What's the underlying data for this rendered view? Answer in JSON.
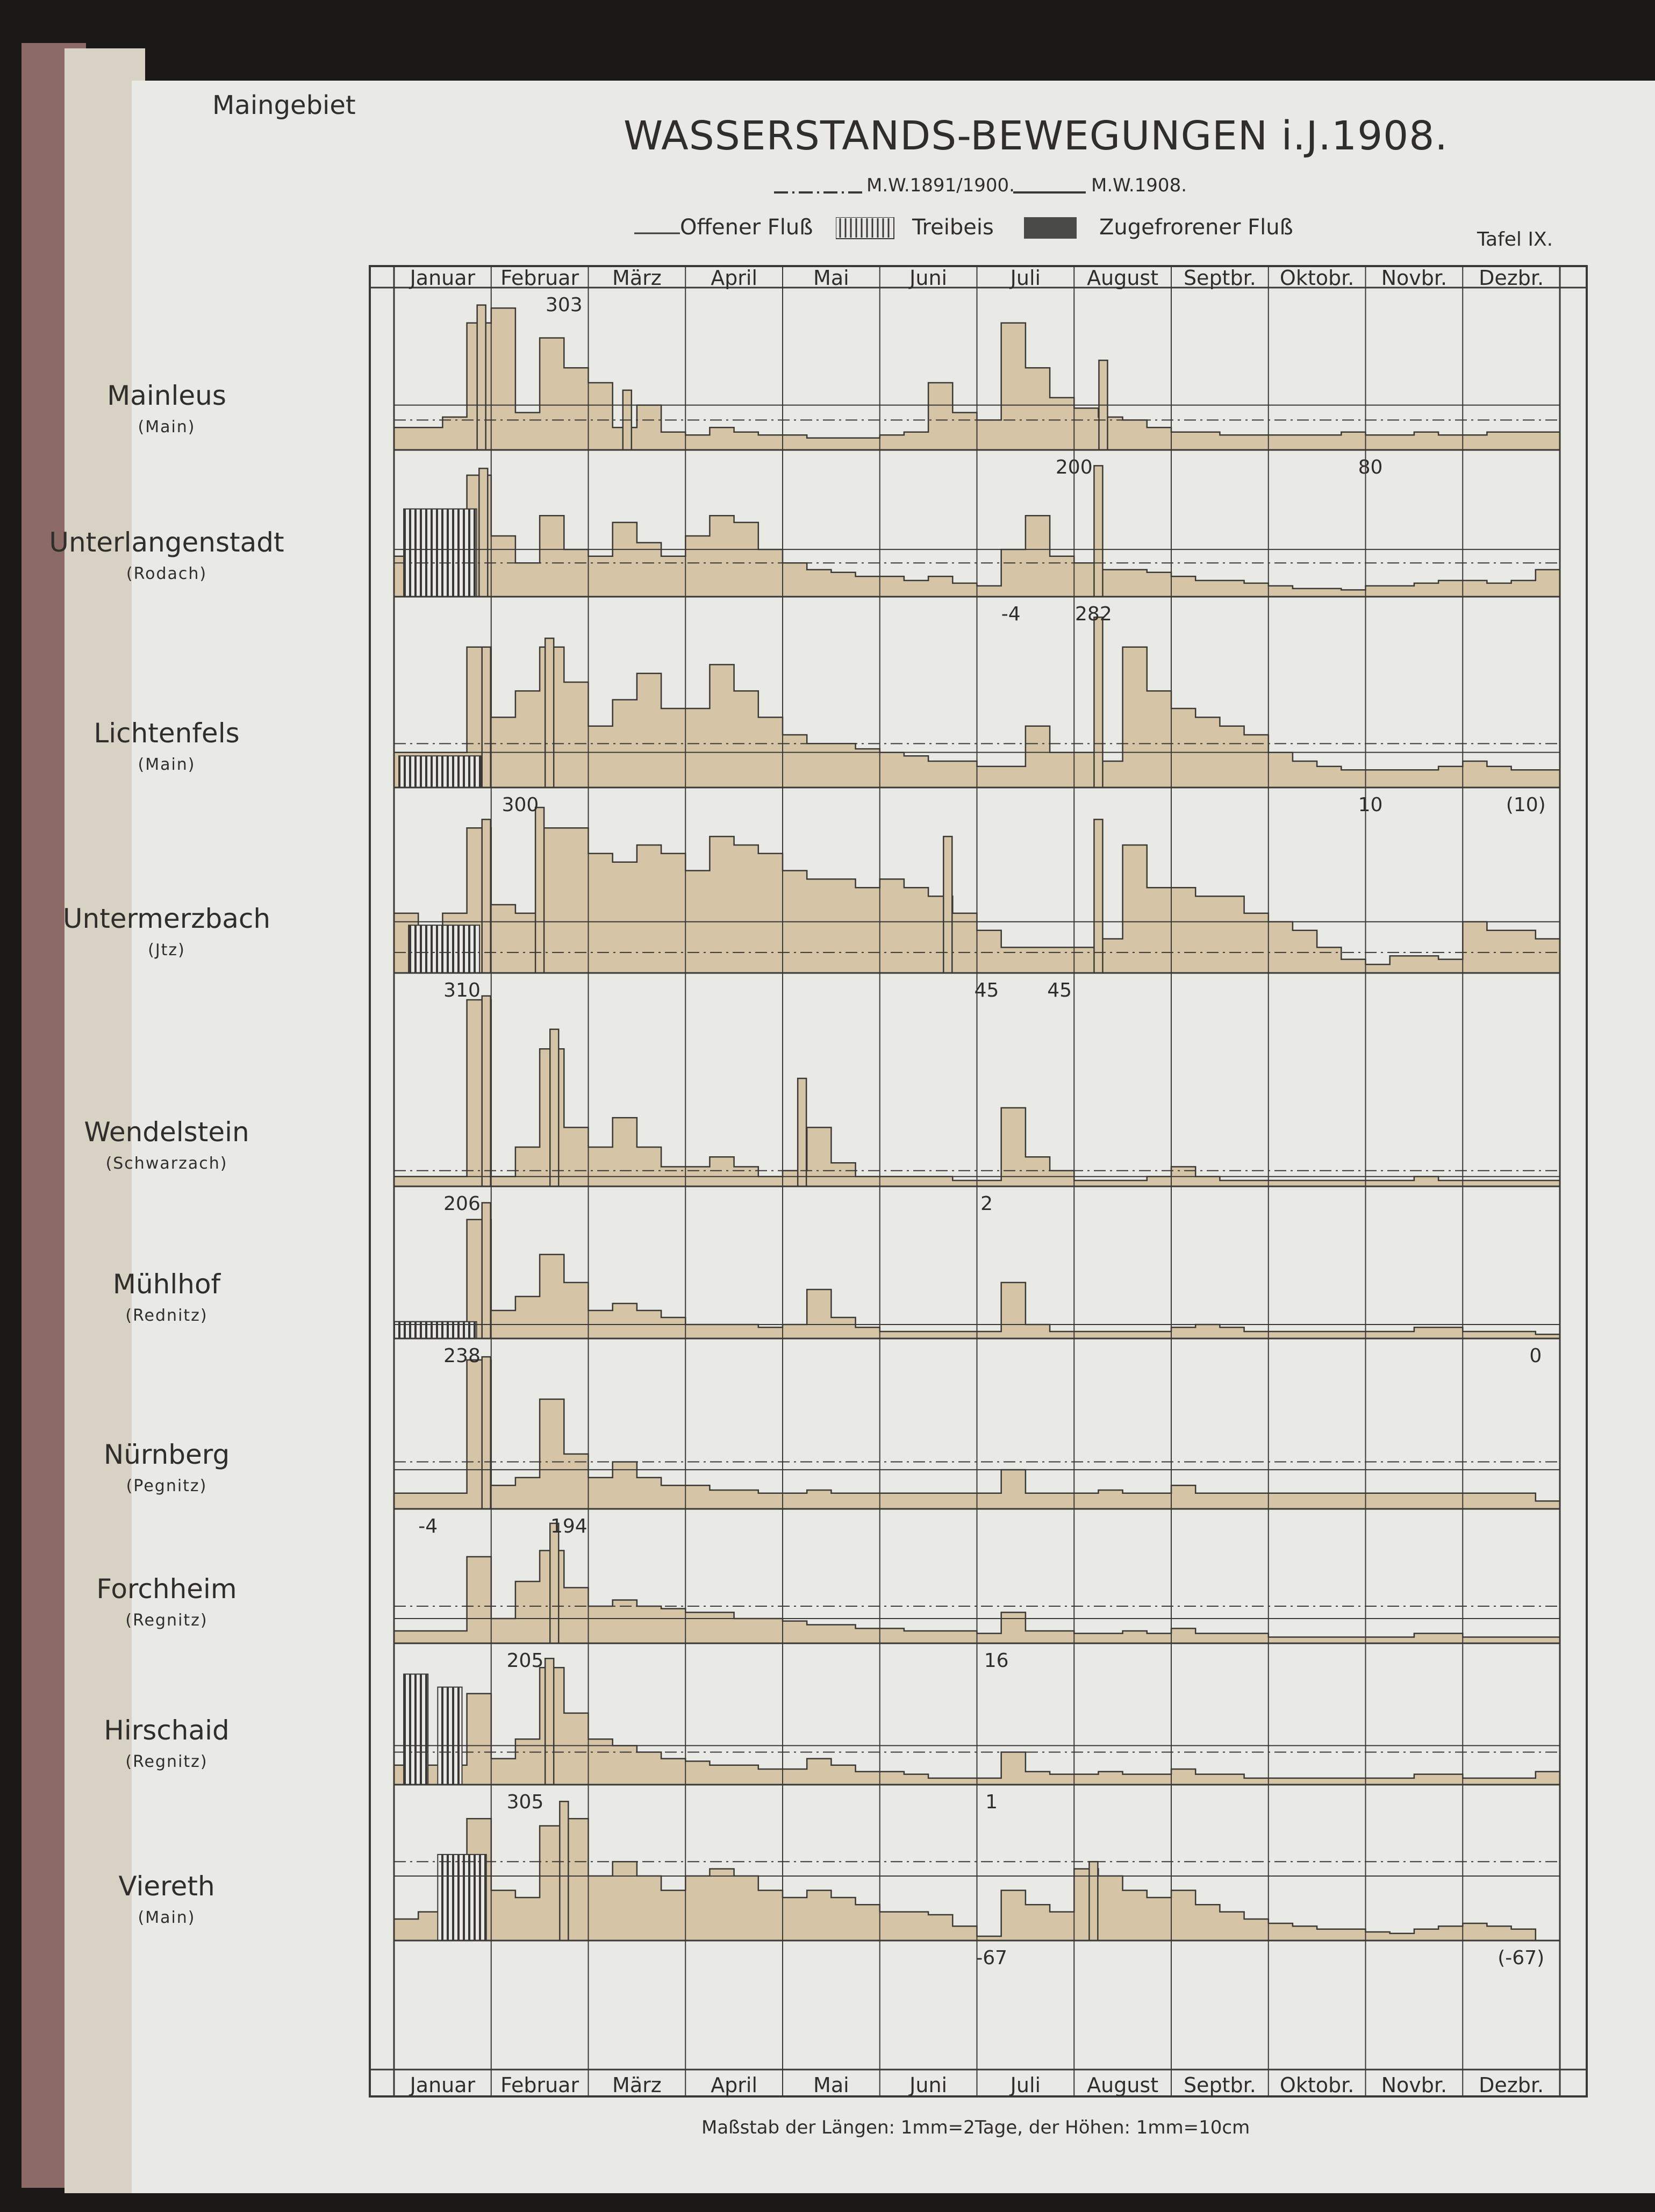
{
  "header": {
    "region": "Maingebiet",
    "title": "WASSERSTANDS-BEWEGUNGEN i.J.1908.",
    "plate": "Tafel IX.",
    "mw_legend": [
      {
        "name": "M.W.1891/1900.",
        "style": "dash-dot"
      },
      {
        "name": "M.W.1908.",
        "style": "solid"
      }
    ],
    "ice_legend": [
      {
        "name": "Offener Fluß",
        "style": "line"
      },
      {
        "name": "Treibeis",
        "style": "hatched"
      },
      {
        "name": "Zugefrorener Fluß",
        "style": "dark"
      }
    ]
  },
  "footer": {
    "scale": "Maßstab der Längen: 1mm=2Tage, der Höhen: 1mm=10cm"
  },
  "colors": {
    "paper": "#e9e9e5",
    "fill": "#d6c4a7",
    "ink": "#3a3936",
    "ice": "#4a4a46"
  },
  "chart_data": {
    "type": "area",
    "months_top": [
      "Januar",
      "Februar",
      "März",
      "April",
      "Mai",
      "Juni",
      "Juli",
      "August",
      "Septbr.",
      "Oktobr.",
      "Novbr.",
      "Dezbr."
    ],
    "months_bottom": [
      "Januar",
      "Februar",
      "März",
      "April",
      "Mai",
      "Juni",
      "Juli",
      "August",
      "Septbr.",
      "Oktobr.",
      "Novbr.",
      "Dezbr."
    ],
    "stations": [
      {
        "name": "Mainleus",
        "river": "(Main)",
        "ice": [],
        "profile": [
          0.15,
          0.15,
          0.22,
          0.85,
          0.95,
          0.25,
          0.75,
          0.55,
          0.45,
          0.15,
          0.3,
          0.12,
          0.1,
          0.15,
          0.12,
          0.1,
          0.1,
          0.08,
          0.08,
          0.08,
          0.1,
          0.12,
          0.45,
          0.25,
          0.2,
          0.85,
          0.55,
          0.35,
          0.28,
          0.22,
          0.2,
          0.15,
          0.12,
          0.12,
          0.1,
          0.1,
          0.1,
          0.1,
          0.1,
          0.12,
          0.1,
          0.1,
          0.12,
          0.1,
          0.1,
          0.12,
          0.12,
          0.12
        ],
        "spikes": [
          {
            "month": 0.9,
            "value": 303
          },
          {
            "month": 2.4,
            "value": 0.4
          },
          {
            "month": 7.3,
            "value": 0.6
          }
        ],
        "mw_old": 0.2,
        "mw_new": 0.3,
        "labels": [
          {
            "text": "303",
            "month": 1.75,
            "pos": "top"
          }
        ]
      },
      {
        "name": "Unterlangenstadt",
        "river": "(Rodach)",
        "ice": [
          {
            "start": 0.1,
            "end": 0.85,
            "level": 0.65
          }
        ],
        "profile": [
          0.3,
          0.3,
          0.35,
          0.9,
          0.45,
          0.25,
          0.6,
          0.35,
          0.3,
          0.55,
          0.4,
          0.3,
          0.45,
          0.6,
          0.55,
          0.35,
          0.25,
          0.2,
          0.18,
          0.15,
          0.15,
          0.12,
          0.15,
          0.1,
          0.08,
          0.35,
          0.6,
          0.3,
          0.25,
          0.2,
          0.2,
          0.18,
          0.15,
          0.12,
          0.12,
          0.1,
          0.08,
          0.06,
          0.06,
          0.05,
          0.08,
          0.08,
          0.1,
          0.12,
          0.12,
          0.1,
          0.12,
          0.2
        ],
        "spikes": [
          {
            "month": 0.92,
            "value": 0.95
          },
          {
            "month": 7.25,
            "value": 200
          }
        ],
        "mw_old": 0.25,
        "mw_new": 0.35,
        "labels": [
          {
            "text": "200",
            "month": 7.0,
            "pos": "top"
          },
          {
            "text": "80",
            "month": 10.05,
            "pos": "top"
          },
          {
            "text": "-4",
            "month": 6.35,
            "pos": "bottom"
          }
        ]
      },
      {
        "name": "Lichtenfels",
        "river": "(Main)",
        "ice": [
          {
            "start": 0.05,
            "end": 0.9,
            "level": 0.18
          }
        ],
        "profile": [
          0.2,
          0.2,
          0.2,
          0.8,
          0.4,
          0.55,
          0.8,
          0.6,
          0.35,
          0.5,
          0.65,
          0.45,
          0.45,
          0.7,
          0.55,
          0.4,
          0.3,
          0.25,
          0.25,
          0.22,
          0.2,
          0.18,
          0.15,
          0.15,
          0.12,
          0.12,
          0.35,
          0.2,
          0.2,
          0.15,
          0.8,
          0.55,
          0.45,
          0.4,
          0.35,
          0.3,
          0.2,
          0.15,
          0.12,
          0.1,
          0.1,
          0.1,
          0.1,
          0.12,
          0.15,
          0.12,
          0.1,
          0.1
        ],
        "spikes": [
          {
            "month": 0.95,
            "value": 0.8
          },
          {
            "month": 7.25,
            "value": 282
          },
          {
            "month": 1.6,
            "value": 0.85
          }
        ],
        "mw_old": 0.25,
        "mw_new": 0.2,
        "labels": [
          {
            "text": "282",
            "month": 7.2,
            "pos": "top"
          },
          {
            "text": "10",
            "month": 10.05,
            "pos": "bottom"
          },
          {
            "text": "(10)",
            "month": 11.65,
            "pos": "bottom"
          }
        ]
      },
      {
        "name": "Untermerzbach",
        "river": "(Jtz)",
        "ice": [
          {
            "start": 0.15,
            "end": 0.88,
            "level": 0.28
          }
        ],
        "profile": [
          0.35,
          0.25,
          0.35,
          0.85,
          0.4,
          0.35,
          0.85,
          0.85,
          0.7,
          0.65,
          0.75,
          0.7,
          0.6,
          0.8,
          0.75,
          0.7,
          0.6,
          0.55,
          0.55,
          0.5,
          0.55,
          0.5,
          0.45,
          0.35,
          0.25,
          0.15,
          0.15,
          0.15,
          0.15,
          0.2,
          0.75,
          0.5,
          0.5,
          0.45,
          0.45,
          0.35,
          0.3,
          0.25,
          0.15,
          0.08,
          0.05,
          0.1,
          0.1,
          0.08,
          0.3,
          0.25,
          0.25,
          0.2
        ],
        "spikes": [
          {
            "month": 0.95,
            "value": 0.9
          },
          {
            "month": 1.5,
            "value": 300
          },
          {
            "month": 5.7,
            "value": 0.8
          },
          {
            "month": 7.25,
            "value": 0.9
          }
        ],
        "mw_old": 0.12,
        "mw_new": 0.3,
        "labels": [
          {
            "text": "300",
            "month": 1.3,
            "pos": "top"
          },
          {
            "text": "45",
            "month": 6.1,
            "pos": "bottom"
          },
          {
            "text": "45",
            "month": 6.85,
            "pos": "bottom"
          }
        ]
      },
      {
        "name": "Wendelstein",
        "river": "(Schwarzach)",
        "ice": [],
        "profile": [
          0.05,
          0.05,
          0.05,
          0.95,
          0.05,
          0.2,
          0.7,
          0.3,
          0.2,
          0.35,
          0.2,
          0.1,
          0.1,
          0.15,
          0.1,
          0.05,
          0.08,
          0.3,
          0.12,
          0.05,
          0.05,
          0.05,
          0.05,
          0.03,
          0.03,
          0.4,
          0.15,
          0.08,
          0.03,
          0.03,
          0.03,
          0.05,
          0.1,
          0.05,
          0.03,
          0.03,
          0.03,
          0.03,
          0.03,
          0.03,
          0.03,
          0.03,
          0.05,
          0.03,
          0.03,
          0.03,
          0.03,
          0.03
        ],
        "spikes": [
          {
            "month": 0.95,
            "value": 310
          },
          {
            "month": 1.65,
            "value": 0.8
          },
          {
            "month": 4.2,
            "value": 0.55
          }
        ],
        "mw_old": 0.08,
        "mw_new": 0.05,
        "labels": [
          {
            "text": "310",
            "month": 0.7,
            "pos": "top"
          }
        ]
      },
      {
        "name": "Mühlhof",
        "river": "(Rednitz)",
        "ice": [
          {
            "start": 0.0,
            "end": 0.85,
            "level": 0.12
          }
        ],
        "profile": [
          0.12,
          0.12,
          0.12,
          0.85,
          0.2,
          0.3,
          0.6,
          0.4,
          0.2,
          0.25,
          0.2,
          0.15,
          0.1,
          0.1,
          0.1,
          0.08,
          0.1,
          0.35,
          0.15,
          0.08,
          0.05,
          0.05,
          0.05,
          0.05,
          0.05,
          0.4,
          0.1,
          0.05,
          0.05,
          0.05,
          0.05,
          0.05,
          0.08,
          0.1,
          0.08,
          0.05,
          0.05,
          0.05,
          0.05,
          0.05,
          0.05,
          0.05,
          0.08,
          0.08,
          0.05,
          0.05,
          0.05,
          0.03
        ],
        "spikes": [
          {
            "month": 0.95,
            "value": 206
          }
        ],
        "mw_old": 0.1,
        "mw_new": 0.1,
        "labels": [
          {
            "text": "206",
            "month": 0.7,
            "pos": "top"
          },
          {
            "text": "2",
            "month": 6.1,
            "pos": "top"
          }
        ]
      },
      {
        "name": "Nürnberg",
        "river": "(Pegnitz)",
        "ice": [],
        "profile": [
          0.1,
          0.1,
          0.1,
          0.95,
          0.15,
          0.2,
          0.7,
          0.35,
          0.2,
          0.3,
          0.2,
          0.15,
          0.15,
          0.12,
          0.12,
          0.1,
          0.1,
          0.12,
          0.1,
          0.1,
          0.1,
          0.1,
          0.1,
          0.1,
          0.1,
          0.25,
          0.1,
          0.1,
          0.1,
          0.12,
          0.1,
          0.1,
          0.15,
          0.1,
          0.1,
          0.1,
          0.1,
          0.1,
          0.1,
          0.1,
          0.1,
          0.1,
          0.1,
          0.1,
          0.1,
          0.1,
          0.1,
          0.05
        ],
        "spikes": [
          {
            "month": 0.95,
            "value": 238
          }
        ],
        "mw_old": 0.3,
        "mw_new": 0.25,
        "labels": [
          {
            "text": "238",
            "month": 0.7,
            "pos": "top"
          },
          {
            "text": "0",
            "month": 11.75,
            "pos": "top"
          },
          {
            "text": "-4",
            "month": 0.35,
            "pos": "bottom"
          }
        ]
      },
      {
        "name": "Forchheim",
        "river": "(Regnitz)",
        "ice": [],
        "profile": [
          0.1,
          0.1,
          0.1,
          0.7,
          0.2,
          0.5,
          0.75,
          0.45,
          0.3,
          0.35,
          0.3,
          0.28,
          0.25,
          0.25,
          0.2,
          0.2,
          0.18,
          0.15,
          0.15,
          0.12,
          0.12,
          0.1,
          0.1,
          0.1,
          0.08,
          0.25,
          0.1,
          0.1,
          0.08,
          0.08,
          0.1,
          0.08,
          0.12,
          0.08,
          0.08,
          0.08,
          0.05,
          0.05,
          0.05,
          0.05,
          0.05,
          0.05,
          0.08,
          0.08,
          0.05,
          0.05,
          0.05,
          0.05
        ],
        "spikes": [
          {
            "month": 1.65,
            "value": 194
          }
        ],
        "mw_old": 0.3,
        "mw_new": 0.2,
        "labels": [
          {
            "text": "194",
            "month": 1.8,
            "pos": "top"
          },
          {
            "text": "16",
            "month": 6.2,
            "pos": "bottom"
          }
        ]
      },
      {
        "name": "Hirschaid",
        "river": "(Regnitz)",
        "ice": [
          {
            "start": 0.1,
            "end": 0.35,
            "level": 0.85
          },
          {
            "start": 0.45,
            "end": 0.7,
            "level": 0.75
          }
        ],
        "profile": [
          0.15,
          0.15,
          0.15,
          0.7,
          0.2,
          0.35,
          0.9,
          0.55,
          0.35,
          0.3,
          0.25,
          0.2,
          0.18,
          0.15,
          0.15,
          0.12,
          0.12,
          0.2,
          0.15,
          0.1,
          0.1,
          0.08,
          0.05,
          0.05,
          0.05,
          0.25,
          0.1,
          0.08,
          0.08,
          0.1,
          0.08,
          0.08,
          0.12,
          0.08,
          0.08,
          0.05,
          0.05,
          0.05,
          0.05,
          0.05,
          0.05,
          0.05,
          0.08,
          0.08,
          0.05,
          0.05,
          0.05,
          0.1
        ],
        "spikes": [
          {
            "month": 1.6,
            "value": 205
          }
        ],
        "mw_old": 0.25,
        "mw_new": 0.3,
        "labels": [
          {
            "text": "205",
            "month": 1.35,
            "pos": "top"
          },
          {
            "text": "1",
            "month": 6.15,
            "pos": "bottom"
          }
        ]
      },
      {
        "name": "Viereth",
        "river": "(Main)",
        "ice": [
          {
            "start": 0.45,
            "end": 0.95,
            "level": 0.6
          }
        ],
        "profile": [
          0.15,
          0.2,
          0.3,
          0.85,
          0.35,
          0.3,
          0.8,
          0.85,
          0.45,
          0.55,
          0.45,
          0.35,
          0.45,
          0.5,
          0.45,
          0.35,
          0.3,
          0.35,
          0.3,
          0.25,
          0.2,
          0.2,
          0.18,
          0.1,
          0.03,
          0.35,
          0.25,
          0.2,
          0.5,
          0.45,
          0.35,
          0.3,
          0.35,
          0.25,
          0.2,
          0.15,
          0.12,
          0.1,
          0.08,
          0.08,
          0.06,
          0.05,
          0.08,
          0.1,
          0.12,
          0.1,
          0.08,
          0.0
        ],
        "spikes": [
          {
            "month": 1.75,
            "value": 305
          },
          {
            "month": 7.2,
            "value": 0.55
          }
        ],
        "mw_old": 0.55,
        "mw_new": 0.45,
        "labels": [
          {
            "text": "305",
            "month": 1.35,
            "pos": "top"
          },
          {
            "text": "-67",
            "month": 6.15,
            "pos": "bottom"
          },
          {
            "text": "(-67)",
            "month": 11.6,
            "pos": "bottom"
          }
        ]
      }
    ]
  }
}
